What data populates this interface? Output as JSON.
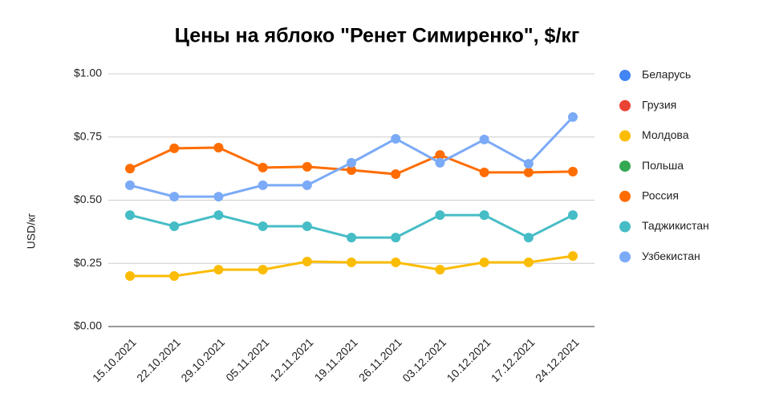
{
  "chart_data": {
    "type": "line",
    "title": "Цены на яблоко \"Ренет Симиренко\", $/кг",
    "y_label": "USD/кг",
    "categories": [
      "15.10.2021",
      "22.10.2021",
      "29.10.2021",
      "05.11.2021",
      "12.11.2021",
      "19.11.2021",
      "26.11.2021",
      "03.12.2021",
      "10.12.2021",
      "17.12.2021",
      "24.12.2021"
    ],
    "ylim": [
      0,
      1
    ],
    "yticks": [
      {
        "value": 0,
        "label": "$0.00"
      },
      {
        "value": 0.25,
        "label": "$0.25"
      },
      {
        "value": 0.5,
        "label": "$0.50"
      },
      {
        "value": 0.75,
        "label": "$0.75"
      },
      {
        "value": 1,
        "label": "$1.00"
      }
    ],
    "grid": true,
    "legend": "right",
    "series": [
      {
        "name": "Беларусь",
        "color": "#4285f4",
        "values": [
          null,
          null,
          null,
          null,
          null,
          null,
          null,
          null,
          null,
          null,
          null
        ]
      },
      {
        "name": "Грузия",
        "color": "#ea4335",
        "values": [
          null,
          null,
          null,
          null,
          null,
          null,
          null,
          null,
          null,
          null,
          null
        ]
      },
      {
        "name": "Молдова",
        "color": "#fbbc04",
        "values": [
          0.2,
          0.2,
          0.225,
          0.225,
          0.257,
          0.254,
          0.254,
          0.225,
          0.254,
          0.254,
          0.279
        ]
      },
      {
        "name": "Польша",
        "color": "#34a853",
        "values": [
          null,
          null,
          null,
          null,
          null,
          null,
          null,
          null,
          null,
          null,
          null
        ]
      },
      {
        "name": "Россия",
        "color": "#ff6d01",
        "values": [
          0.625,
          0.705,
          0.708,
          0.629,
          0.632,
          0.619,
          0.603,
          0.679,
          0.61,
          0.61,
          0.613
        ]
      },
      {
        "name": "Таджикистан",
        "color": "#46bdc6",
        "values": [
          0.441,
          0.397,
          0.441,
          0.397,
          0.397,
          0.352,
          0.352,
          0.441,
          0.441,
          0.352,
          0.441
        ]
      },
      {
        "name": "Узбекистан",
        "color": "#7baaf7",
        "values": [
          0.559,
          0.514,
          0.514,
          0.559,
          0.559,
          0.648,
          0.743,
          0.648,
          0.74,
          0.644,
          0.829
        ]
      }
    ]
  }
}
